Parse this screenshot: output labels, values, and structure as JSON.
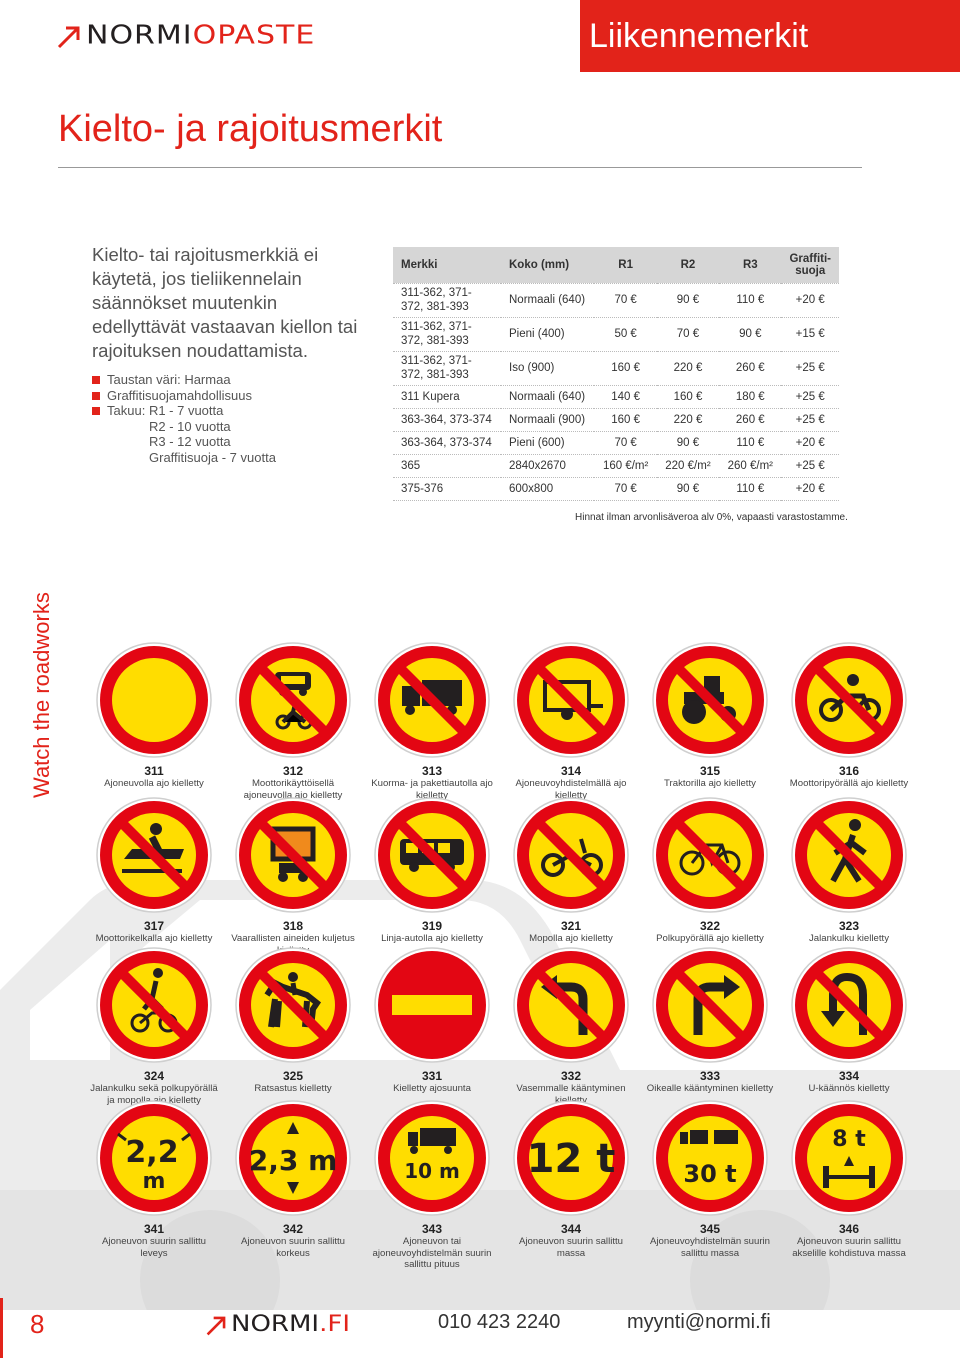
{
  "header": {
    "logo_dark": "NORMI",
    "logo_red": "OPASTE",
    "section": "Liikennemerkit"
  },
  "page_title": "Kielto- ja rajoitusmerkit",
  "intro": "Kielto- tai rajoitusmerkkiä ei käytetä, jos tieliikennelain säännökset muutenkin edellyttävät vastaavan kiellon tai rajoituksen noudattamista.",
  "bullets": {
    "color": "Taustan väri: Harmaa",
    "graffiti": "Graffitisuojamahdollisuus",
    "warranty_label": "Takuu:",
    "r1": "R1 - 7 vuotta",
    "r2": "R2 - 10 vuotta",
    "r3": "R3 - 12 vuotta",
    "gs": "Graffitisuoja - 7 vuotta"
  },
  "table": {
    "headers": [
      "Merkki",
      "Koko (mm)",
      "R1",
      "R2",
      "R3",
      "Graffiti-suoja"
    ],
    "rows": [
      [
        "311-362, 371-372, 381-393",
        "Normaali (640)",
        "70 €",
        "90 €",
        "110 €",
        "+20 €"
      ],
      [
        "311-362, 371-372, 381-393",
        "Pieni (400)",
        "50 €",
        "70 €",
        "90 €",
        "+15 €"
      ],
      [
        "311-362, 371-372, 381-393",
        "Iso (900)",
        "160 €",
        "220 €",
        "260 €",
        "+25 €"
      ],
      [
        "311 Kupera",
        "Normaali (640)",
        "140 €",
        "160 €",
        "180 €",
        "+25 €"
      ],
      [
        "363-364, 373-374",
        "Normaali (900)",
        "160 €",
        "220 €",
        "260 €",
        "+25 €"
      ],
      [
        "363-364, 373-374",
        "Pieni (600)",
        "70 €",
        "90 €",
        "110 €",
        "+20 €"
      ],
      [
        "365",
        "2840x2670",
        "160 €/m²",
        "220 €/m²",
        "260 €/m²",
        "+25 €"
      ],
      [
        "375-376",
        "600x800",
        "70 €",
        "90 €",
        "110 €",
        "+20 €"
      ]
    ],
    "note": "Hinnat ilman arvonlisäveroa alv 0%, vapaasti varastostamme."
  },
  "side_text": {
    "a": "Watch",
    "b": " the roadworks"
  },
  "signs": [
    {
      "num": "311",
      "desc": "Ajoneuvolla ajo kielletty",
      "icon": "no-vehicles"
    },
    {
      "num": "312",
      "desc": "Moottorikäyttöisellä ajoneuvolla ajo kielletty",
      "icon": "car-moped"
    },
    {
      "num": "313",
      "desc": "Kuorma- ja pakettiautolla ajo kielletty",
      "icon": "truck"
    },
    {
      "num": "314",
      "desc": "Ajoneuvoyhdistelmällä ajo kielletty",
      "icon": "trailer"
    },
    {
      "num": "315",
      "desc": "Traktorilla ajo kielletty",
      "icon": "tractor"
    },
    {
      "num": "316",
      "desc": "Moottoripyörällä ajo kielletty",
      "icon": "motorcycle"
    },
    {
      "num": "317",
      "desc": "Moottorikelkalla ajo kielletty",
      "icon": "snowmobile"
    },
    {
      "num": "318",
      "desc": "Vaarallisten aineiden kuljetus kielletty",
      "icon": "dangerous-goods"
    },
    {
      "num": "319",
      "desc": "Linja-autolla ajo kielletty",
      "icon": "bus"
    },
    {
      "num": "321",
      "desc": "Mopolla ajo kielletty",
      "icon": "moped"
    },
    {
      "num": "322",
      "desc": "Polkupyörällä ajo kielletty",
      "icon": "bicycle"
    },
    {
      "num": "323",
      "desc": "Jalankulku kielletty",
      "icon": "pedestrian"
    },
    {
      "num": "324",
      "desc": "Jalankulku sekä polkupyörällä ja mopolla ajo kielletty",
      "icon": "pedestrian-bicycle"
    },
    {
      "num": "325",
      "desc": "Ratsastus kielletty",
      "icon": "horse"
    },
    {
      "num": "331",
      "desc": "Kielletty ajosuunta",
      "icon": "no-entry"
    },
    {
      "num": "332",
      "desc": "Vasemmalle kääntyminen kielletty",
      "icon": "left-turn"
    },
    {
      "num": "333",
      "desc": "Oikealle kääntyminen kielletty",
      "icon": "right-turn"
    },
    {
      "num": "334",
      "desc": "U-käännös kielletty",
      "icon": "u-turn"
    },
    {
      "num": "341",
      "desc": "Ajoneuvon suurin sallittu leveys",
      "icon": "width-limit",
      "value": "2,2 m"
    },
    {
      "num": "342",
      "desc": "Ajoneuvon suurin sallittu korkeus",
      "icon": "height-limit",
      "value": "2,3 m"
    },
    {
      "num": "343",
      "desc": "Ajoneuvon tai ajoneuvoyhdistelmän suurin sallittu pituus",
      "icon": "length-limit",
      "value": "10 m"
    },
    {
      "num": "344",
      "desc": "Ajoneuvon suurin sallittu massa",
      "icon": "mass-limit",
      "value": "12 t"
    },
    {
      "num": "345",
      "desc": "Ajoneuvoyhdistelmän suurin sallittu massa",
      "icon": "combination-mass-limit",
      "value": "30 t"
    },
    {
      "num": "346",
      "desc": "Ajoneuvon suurin sallittu akselille kohdistuva massa",
      "icon": "axle-mass-limit",
      "value": "8 t"
    }
  ],
  "footer": {
    "page": "8",
    "logo_dark": "NORMI",
    "logo_red": ".FI",
    "phone": "010 423 2240",
    "email": "myynti@normi.fi"
  },
  "colors": {
    "accent": "#e2231a",
    "sign_yellow": "#ffdd00",
    "sign_red": "#e30613"
  }
}
